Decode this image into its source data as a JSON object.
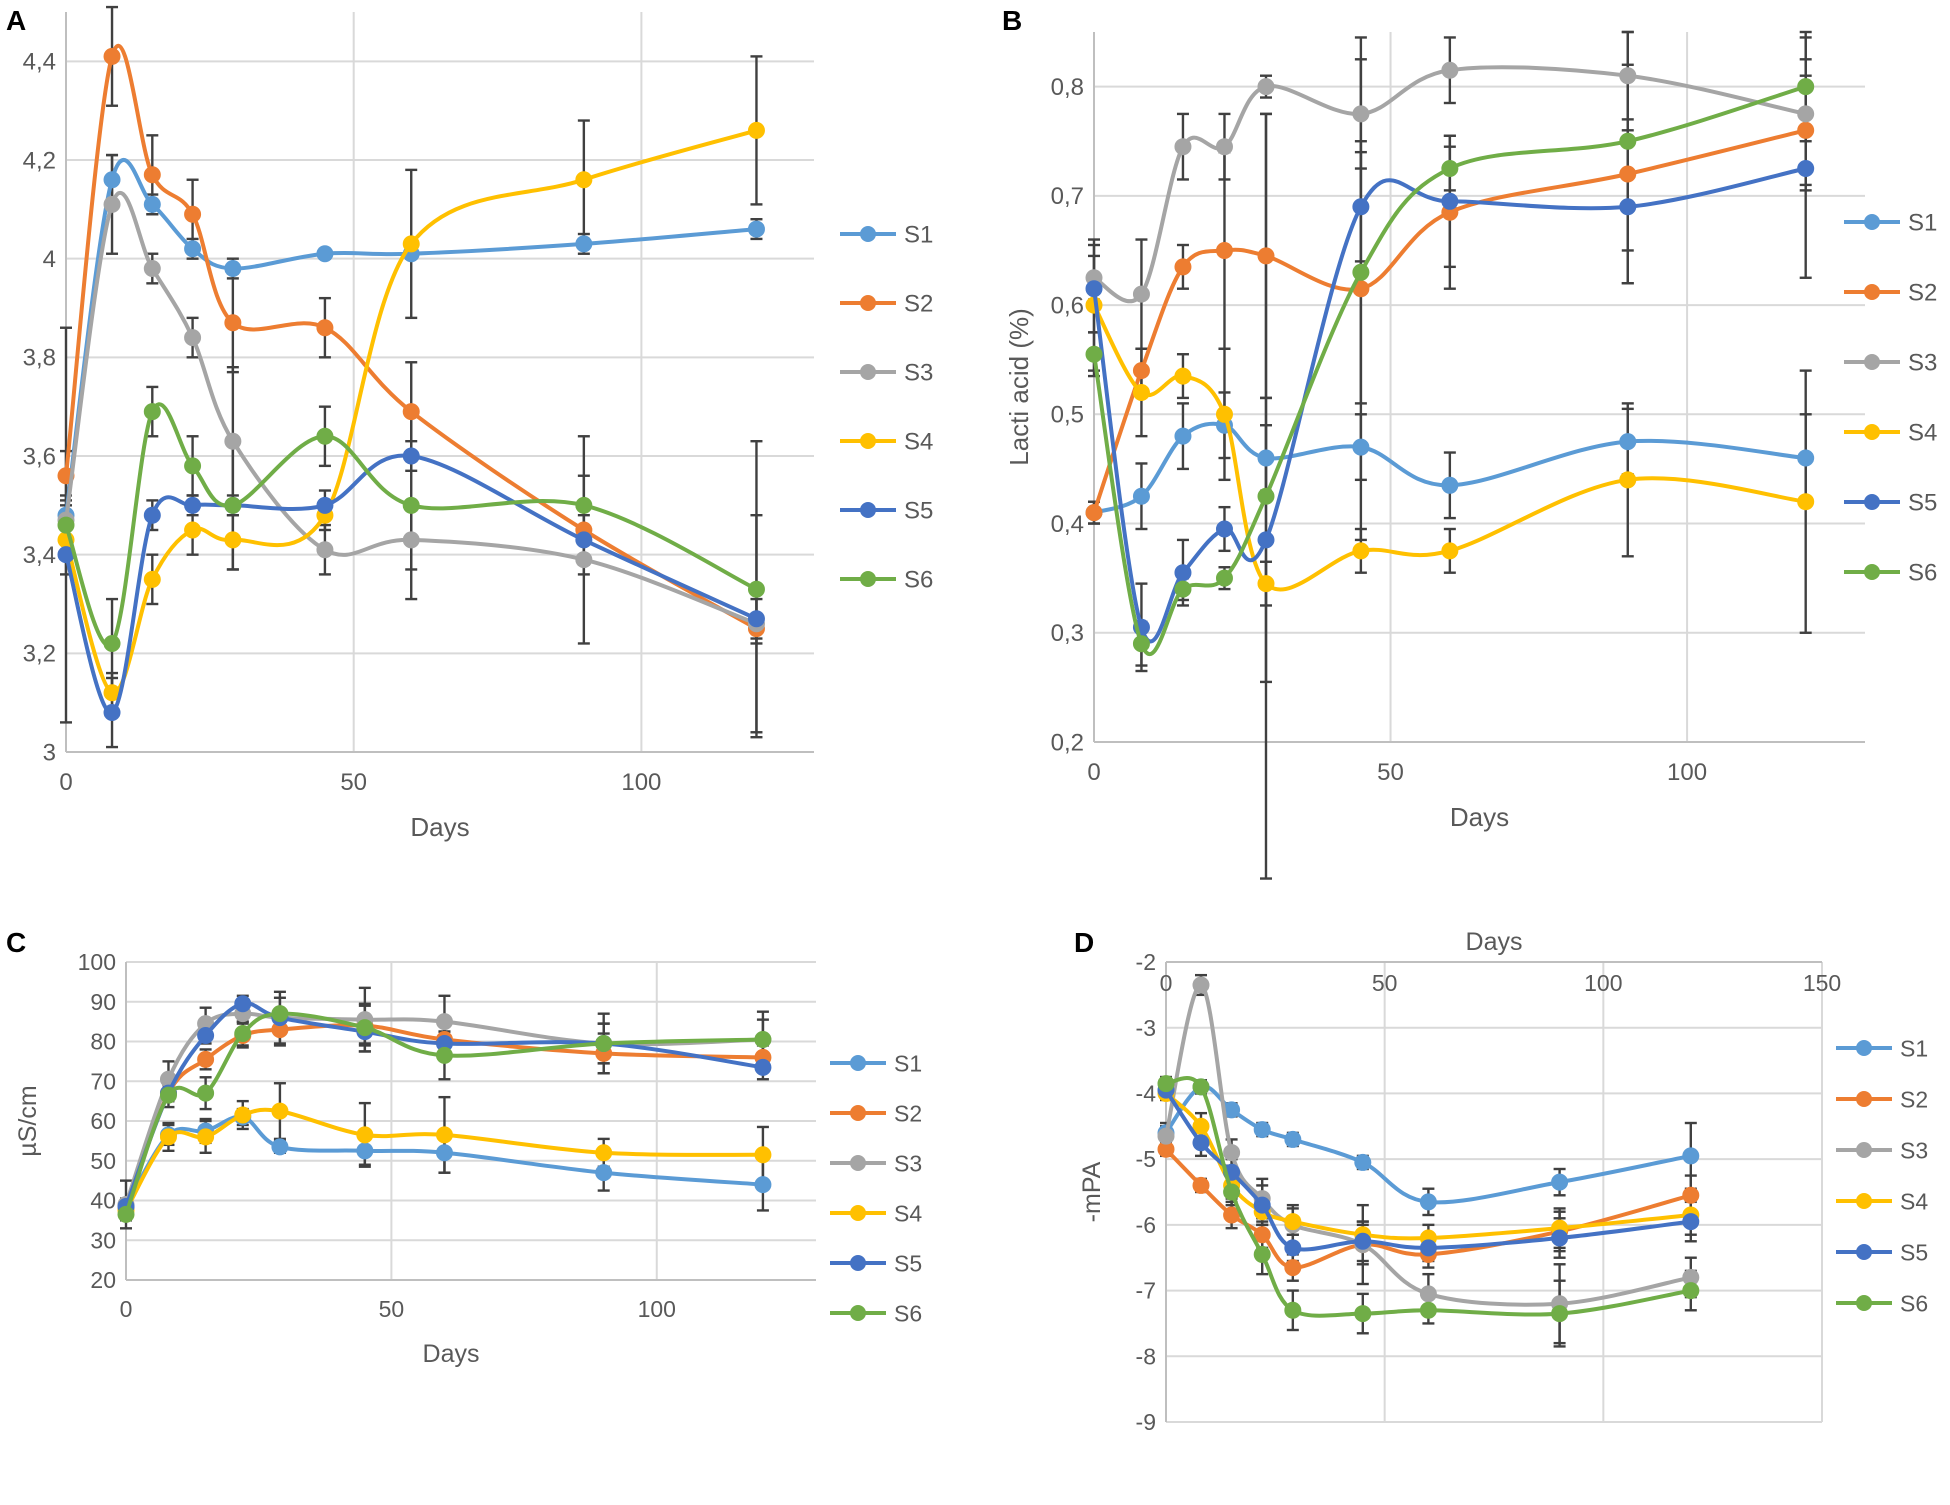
{
  "colors": {
    "S1": "#5b9bd5",
    "S2": "#ed7d31",
    "S3": "#a5a5a5",
    "S4": "#ffc000",
    "S5": "#4472c4",
    "S6": "#70ad47",
    "grid": "#d9d9d9",
    "error_bar": "#404040",
    "text": "#595959"
  },
  "chart_data": [
    {
      "panel": "A",
      "type": "line",
      "xlabel": "Days",
      "ylabel": "",
      "xlim": [
        0,
        130
      ],
      "ylim": [
        3,
        4.5
      ],
      "x_ticks": [
        0,
        50,
        100
      ],
      "x_tick_labels": [
        "0",
        "50",
        "100"
      ],
      "y_ticks": [
        3,
        3.2,
        3.4,
        3.6,
        3.8,
        4,
        4.2,
        4.4
      ],
      "y_tick_labels": [
        "3",
        "3,2",
        "3,4",
        "3,6",
        "3,8",
        "4",
        "4,2",
        "4,4"
      ],
      "x_axis_position": "bottom",
      "legend": "right",
      "x": [
        0,
        8,
        15,
        22,
        29,
        45,
        60,
        90,
        120
      ],
      "series": [
        {
          "name": "S1",
          "values": [
            3.48,
            4.16,
            4.11,
            4.02,
            3.98,
            4.01,
            4.01,
            4.03,
            4.06
          ],
          "errors": [
            0.02,
            0.05,
            0.02,
            0.02,
            0.02,
            0.01,
            0.01,
            0.02,
            0.02
          ]
        },
        {
          "name": "S2",
          "values": [
            3.56,
            4.41,
            4.17,
            4.09,
            3.87,
            3.86,
            3.69,
            3.45,
            3.25
          ],
          "errors": [
            0.05,
            0.1,
            0.08,
            0.07,
            0.1,
            0.06,
            0.1,
            0.05,
            0.03
          ]
        },
        {
          "name": "S3",
          "values": [
            3.47,
            4.11,
            3.98,
            3.84,
            3.63,
            3.41,
            3.43,
            3.39,
            3.26
          ],
          "errors": [
            0.05,
            0.1,
            0.03,
            0.04,
            0.15,
            0.05,
            0.06,
            0.17,
            0.22
          ]
        },
        {
          "name": "S4",
          "values": [
            3.43,
            3.12,
            3.35,
            3.45,
            3.43,
            3.48,
            4.03,
            4.16,
            4.26
          ],
          "errors": [
            0.02,
            0.04,
            0.05,
            0.05,
            0.06,
            0.03,
            0.15,
            0.12,
            0.15
          ]
        },
        {
          "name": "S5",
          "values": [
            3.4,
            3.08,
            3.48,
            3.5,
            3.5,
            3.5,
            3.6,
            3.43,
            3.27
          ],
          "errors": [
            0.04,
            0.07,
            0.03,
            0.02,
            0.02,
            0.03,
            0.03,
            0.05,
            0.04
          ]
        },
        {
          "name": "S6",
          "values": [
            3.46,
            3.22,
            3.69,
            3.58,
            3.5,
            3.64,
            3.5,
            3.5,
            3.33
          ],
          "errors": [
            0.4,
            0.09,
            0.05,
            0.06,
            0.13,
            0.06,
            0.19,
            0.14,
            0.3
          ]
        }
      ]
    },
    {
      "panel": "B",
      "type": "line",
      "xlabel": "Days",
      "ylabel": "Lacti acid (%)",
      "xlim": [
        0,
        130
      ],
      "ylim": [
        0.2,
        0.85
      ],
      "x_ticks": [
        0,
        50,
        100
      ],
      "x_tick_labels": [
        "0",
        "50",
        "100"
      ],
      "y_ticks": [
        0.2,
        0.3,
        0.4,
        0.5,
        0.6,
        0.7,
        0.8
      ],
      "y_tick_labels": [
        "0,2",
        "0,3",
        "0,4",
        "0,5",
        "0,6",
        "0,7",
        "0,8"
      ],
      "x_axis_position": "bottom",
      "legend": "right",
      "x": [
        0,
        8,
        15,
        22,
        29,
        45,
        60,
        90,
        120
      ],
      "series": [
        {
          "name": "S1",
          "values": [
            0.41,
            0.425,
            0.48,
            0.49,
            0.46,
            0.47,
            0.435,
            0.475,
            0.46
          ],
          "errors": [
            0.01,
            0.03,
            0.03,
            0.03,
            0.03,
            0.03,
            0.03,
            0.03,
            0.04
          ]
        },
        {
          "name": "S2",
          "values": [
            0.41,
            0.54,
            0.635,
            0.65,
            0.645,
            0.615,
            0.685,
            0.72,
            0.76
          ],
          "errors": [
            0.01,
            0.02,
            0.02,
            0.09,
            0.13,
            0.23,
            0.07,
            0.1,
            0.05
          ]
        },
        {
          "name": "S3",
          "values": [
            0.625,
            0.61,
            0.745,
            0.745,
            0.8,
            0.775,
            0.815,
            0.81,
            0.775
          ],
          "errors": [
            0.02,
            0.05,
            0.03,
            0.03,
            0.01,
            0.05,
            0.03,
            0.04,
            0.07
          ]
        },
        {
          "name": "S4",
          "values": [
            0.6,
            0.52,
            0.535,
            0.5,
            0.345,
            0.375,
            0.375,
            0.44,
            0.42
          ],
          "errors": [
            0.06,
            0.04,
            0.02,
            0.06,
            0.02,
            0.02,
            0.02,
            0.07,
            0.12
          ]
        },
        {
          "name": "S5",
          "values": [
            0.615,
            0.305,
            0.355,
            0.395,
            0.385,
            0.69,
            0.695,
            0.69,
            0.725
          ],
          "errors": [
            0.04,
            0.04,
            0.03,
            0.02,
            0.13,
            0.05,
            0.06,
            0.07,
            0.1
          ]
        },
        {
          "name": "S6",
          "values": [
            0.555,
            0.29,
            0.34,
            0.35,
            0.425,
            0.63,
            0.725,
            0.75,
            0.8
          ],
          "errors": [
            0.02,
            0.02,
            0.01,
            0.01,
            0.35,
            0.12,
            0.02,
            0.1,
            0.05
          ]
        }
      ]
    },
    {
      "panel": "C",
      "type": "line",
      "xlabel": "Days",
      "ylabel": "µS/cm",
      "xlim": [
        0,
        130
      ],
      "ylim": [
        20,
        100
      ],
      "x_ticks": [
        0,
        50,
        100
      ],
      "x_tick_labels": [
        "0",
        "50",
        "100"
      ],
      "y_ticks": [
        20,
        30,
        40,
        50,
        60,
        70,
        80,
        90,
        100
      ],
      "y_tick_labels": [
        "20",
        "30",
        "40",
        "50",
        "60",
        "70",
        "80",
        "90",
        "100"
      ],
      "x_axis_position": "bottom",
      "legend": "right",
      "x": [
        0,
        8,
        15,
        22,
        29,
        45,
        60,
        90,
        120
      ],
      "series": [
        {
          "name": "S1",
          "values": [
            38.5,
            56.5,
            57.5,
            61,
            53.5,
            52.5,
            52,
            47,
            44
          ],
          "errors": [
            1.5,
            2.5,
            3,
            2,
            1.5,
            3.5,
            5,
            4.5,
            6.5
          ]
        },
        {
          "name": "S2",
          "values": [
            38,
            67,
            75.5,
            81.5,
            83,
            84,
            80.5,
            77,
            76
          ],
          "errors": [
            1.5,
            2,
            2.5,
            3,
            4,
            5,
            5,
            5,
            3
          ]
        },
        {
          "name": "S3",
          "values": [
            39,
            70.5,
            84.5,
            87,
            86,
            85.5,
            85,
            79.5,
            80.5
          ],
          "errors": [
            6,
            4.5,
            4,
            2,
            6.5,
            8,
            6.5,
            7.5,
            7
          ]
        },
        {
          "name": "S4",
          "values": [
            37.5,
            56,
            56,
            61.5,
            62.5,
            56.5,
            56.5,
            52,
            51.5
          ],
          "errors": [
            1.5,
            3.5,
            4,
            3.5,
            7,
            8,
            9.5,
            3.5,
            7
          ]
        },
        {
          "name": "S5",
          "values": [
            38.5,
            67,
            81.5,
            89.5,
            86,
            82.5,
            79.5,
            79.5,
            73.5
          ],
          "errors": [
            2,
            2,
            2,
            2,
            2,
            3,
            3,
            5,
            3
          ]
        },
        {
          "name": "S6",
          "values": [
            36.5,
            66.5,
            67,
            82,
            87,
            83.5,
            76.5,
            79.5,
            80.5
          ],
          "errors": [
            1.5,
            3,
            4,
            3,
            4,
            6,
            6,
            5,
            5
          ]
        }
      ]
    },
    {
      "panel": "D",
      "type": "line",
      "xlabel": "Days",
      "ylabel": "-mPA",
      "xlim": [
        0,
        150
      ],
      "ylim": [
        -9,
        -2
      ],
      "x_ticks": [
        0,
        50,
        100,
        150
      ],
      "x_tick_labels": [
        "0",
        "50",
        "100",
        "150"
      ],
      "y_ticks": [
        -9,
        -8,
        -7,
        -6,
        -5,
        -4,
        -3,
        -2
      ],
      "y_tick_labels": [
        "-9",
        "-8",
        "-7",
        "-6",
        "-5",
        "-4",
        "-3",
        "-2"
      ],
      "x_axis_position": "top",
      "legend": "right",
      "x": [
        0,
        8,
        15,
        22,
        29,
        45,
        60,
        90,
        120
      ],
      "series": [
        {
          "name": "S1",
          "values": [
            -4.6,
            -3.9,
            -4.25,
            -4.55,
            -4.7,
            -5.05,
            -5.65,
            -5.35,
            -4.95
          ],
          "errors": [
            0.1,
            0.1,
            0.1,
            0.1,
            0.1,
            0.1,
            0.2,
            0.2,
            0.5
          ]
        },
        {
          "name": "S2",
          "values": [
            -4.85,
            -5.4,
            -5.85,
            -6.15,
            -6.65,
            -6.3,
            -6.45,
            -6.1,
            -5.55
          ],
          "errors": [
            0.1,
            0.1,
            0.2,
            0.2,
            0.2,
            0.3,
            0.2,
            0.3,
            0.3
          ]
        },
        {
          "name": "S3",
          "values": [
            -4.65,
            -2.35,
            -4.9,
            -5.6,
            -6.0,
            -6.3,
            -7.05,
            -7.2,
            -6.8
          ],
          "errors": [
            0.2,
            0.15,
            0.2,
            0.3,
            0.3,
            0.6,
            0.3,
            0.6,
            0.3
          ]
        },
        {
          "name": "S4",
          "values": [
            -4.0,
            -4.5,
            -5.4,
            -5.8,
            -5.95,
            -6.15,
            -6.2,
            -6.05,
            -5.85
          ],
          "errors": [
            0.1,
            0.2,
            0.2,
            0.2,
            0.2,
            0.2,
            0.2,
            0.3,
            0.3
          ]
        },
        {
          "name": "S5",
          "values": [
            -3.95,
            -4.75,
            -5.2,
            -5.7,
            -6.35,
            -6.25,
            -6.35,
            -6.2,
            -5.95
          ],
          "errors": [
            0.1,
            0.2,
            0.2,
            0.3,
            0.2,
            0.3,
            0.2,
            0.3,
            0.3
          ]
        },
        {
          "name": "S6",
          "values": [
            -3.85,
            -3.9,
            -5.5,
            -6.45,
            -7.3,
            -7.35,
            -7.3,
            -7.35,
            -7.0
          ],
          "errors": [
            0.1,
            0.1,
            0.2,
            0.3,
            0.3,
            0.3,
            0.2,
            0.5,
            0.3
          ]
        }
      ]
    }
  ]
}
